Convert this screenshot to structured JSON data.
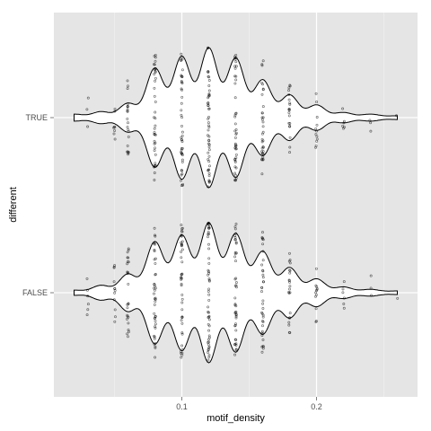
{
  "chart_data": {
    "type": "violin",
    "orientation": "horizontal",
    "xlabel": "motif_density",
    "ylabel": "different",
    "xlim": [
      0.005,
      0.275
    ],
    "x_ticks": [
      {
        "value": 0.1,
        "label": "0.1"
      },
      {
        "value": 0.2,
        "label": "0.2"
      }
    ],
    "x_minor_ticks": [
      0.05,
      0.15,
      0.25
    ],
    "categories": [
      "TRUE",
      "FALSE"
    ],
    "grid": true,
    "colors": {
      "panel": "#e5e5e5",
      "grid_major": "#ffffff",
      "grid_minor": "#f2f2f2",
      "violin_fill": "#ffffff",
      "violin_outline": "#000000",
      "points": "#000000"
    },
    "groups": [
      {
        "name": "TRUE",
        "density_range": [
          0.02,
          0.26
        ],
        "peaks": [
          [
            0.02,
            0.03
          ],
          [
            0.04,
            0.06
          ],
          [
            0.06,
            0.16
          ],
          [
            0.08,
            0.58
          ],
          [
            0.1,
            0.72
          ],
          [
            0.12,
            0.82
          ],
          [
            0.14,
            0.7
          ],
          [
            0.16,
            0.44
          ],
          [
            0.18,
            0.26
          ],
          [
            0.2,
            0.14
          ],
          [
            0.22,
            0.05
          ],
          [
            0.24,
            0.03
          ],
          [
            0.26,
            0.01
          ]
        ],
        "point_columns": [
          {
            "x": 0.03,
            "n": 3
          },
          {
            "x": 0.05,
            "n": 8
          },
          {
            "x": 0.06,
            "n": 22
          },
          {
            "x": 0.08,
            "n": 40
          },
          {
            "x": 0.1,
            "n": 45
          },
          {
            "x": 0.12,
            "n": 50
          },
          {
            "x": 0.14,
            "n": 45
          },
          {
            "x": 0.16,
            "n": 35
          },
          {
            "x": 0.18,
            "n": 20
          },
          {
            "x": 0.2,
            "n": 12
          },
          {
            "x": 0.22,
            "n": 6
          },
          {
            "x": 0.24,
            "n": 3
          },
          {
            "x": 0.26,
            "n": 1
          }
        ]
      },
      {
        "name": "FALSE",
        "density_range": [
          0.02,
          0.26
        ],
        "peaks": [
          [
            0.02,
            0.02
          ],
          [
            0.04,
            0.08
          ],
          [
            0.06,
            0.22
          ],
          [
            0.08,
            0.62
          ],
          [
            0.1,
            0.7
          ],
          [
            0.12,
            0.85
          ],
          [
            0.14,
            0.72
          ],
          [
            0.16,
            0.5
          ],
          [
            0.18,
            0.3
          ],
          [
            0.2,
            0.16
          ],
          [
            0.22,
            0.06
          ],
          [
            0.24,
            0.03
          ],
          [
            0.26,
            0.01
          ]
        ],
        "point_columns": [
          {
            "x": 0.03,
            "n": 6
          },
          {
            "x": 0.05,
            "n": 12
          },
          {
            "x": 0.06,
            "n": 25
          },
          {
            "x": 0.08,
            "n": 42
          },
          {
            "x": 0.1,
            "n": 45
          },
          {
            "x": 0.12,
            "n": 52
          },
          {
            "x": 0.14,
            "n": 45
          },
          {
            "x": 0.16,
            "n": 38
          },
          {
            "x": 0.18,
            "n": 22
          },
          {
            "x": 0.2,
            "n": 12
          },
          {
            "x": 0.22,
            "n": 6
          },
          {
            "x": 0.24,
            "n": 3
          },
          {
            "x": 0.26,
            "n": 1
          }
        ]
      }
    ]
  }
}
